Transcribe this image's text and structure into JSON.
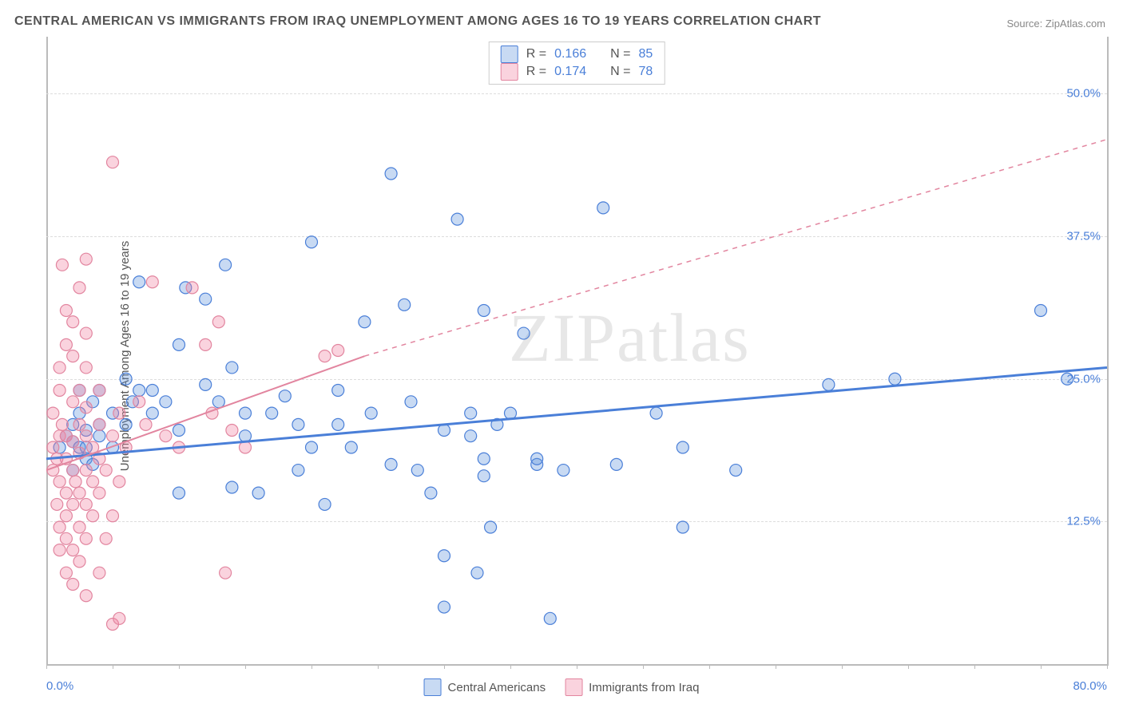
{
  "title": "CENTRAL AMERICAN VS IMMIGRANTS FROM IRAQ UNEMPLOYMENT AMONG AGES 16 TO 19 YEARS CORRELATION CHART",
  "source": "Source: ZipAtlas.com",
  "y_axis_label": "Unemployment Among Ages 16 to 19 years",
  "watermark": "ZIPatlas",
  "chart": {
    "type": "scatter",
    "xlim": [
      0,
      80
    ],
    "ylim": [
      0,
      55
    ],
    "x_min_label": "0.0%",
    "x_max_label": "80.0%",
    "y_ticks": [
      12.5,
      25.0,
      37.5,
      50.0
    ],
    "y_tick_labels": [
      "12.5%",
      "25.0%",
      "37.5%",
      "50.0%"
    ],
    "x_minor_tick_step": 5,
    "background_color": "#ffffff",
    "grid_color": "#dddddd",
    "axis_color": "#bbbbbb",
    "series": [
      {
        "name": "Central Americans",
        "color_fill": "rgba(96,150,222,0.35)",
        "color_stroke": "#4a7fd8",
        "r_label": "R =",
        "r_value": "0.166",
        "n_label": "N =",
        "n_value": "85",
        "trend": {
          "x1": 0,
          "y1": 18,
          "x2": 80,
          "y2": 26,
          "dash": false,
          "stroke_width": 3
        },
        "points": [
          [
            1,
            19
          ],
          [
            1.5,
            20
          ],
          [
            2,
            19.5
          ],
          [
            2,
            21
          ],
          [
            2,
            17
          ],
          [
            2.5,
            19
          ],
          [
            2.5,
            22
          ],
          [
            2.5,
            24
          ],
          [
            3,
            18
          ],
          [
            3,
            20.5
          ],
          [
            3,
            19
          ],
          [
            3.5,
            23
          ],
          [
            3.5,
            17.5
          ],
          [
            4,
            20
          ],
          [
            4,
            24
          ],
          [
            4,
            21
          ],
          [
            5,
            22
          ],
          [
            5,
            19
          ],
          [
            6,
            25
          ],
          [
            6,
            21
          ],
          [
            6.5,
            23
          ],
          [
            7,
            24
          ],
          [
            7,
            33.5
          ],
          [
            8,
            22
          ],
          [
            8,
            24
          ],
          [
            9,
            23
          ],
          [
            10,
            20.5
          ],
          [
            10,
            28
          ],
          [
            10,
            15
          ],
          [
            10.5,
            33
          ],
          [
            12,
            32
          ],
          [
            12,
            24.5
          ],
          [
            13,
            23
          ],
          [
            14,
            15.5
          ],
          [
            14,
            26
          ],
          [
            15,
            20
          ],
          [
            15,
            22
          ],
          [
            16,
            15
          ],
          [
            17,
            22
          ],
          [
            18,
            23.5
          ],
          [
            19,
            17
          ],
          [
            20,
            19
          ],
          [
            20,
            37
          ],
          [
            21,
            14
          ],
          [
            22,
            21
          ],
          [
            22,
            24
          ],
          [
            23,
            19
          ],
          [
            24,
            30
          ],
          [
            24.5,
            22
          ],
          [
            26,
            43
          ],
          [
            26,
            17.5
          ],
          [
            27,
            31.5
          ],
          [
            27.5,
            23
          ],
          [
            28,
            17
          ],
          [
            29,
            15
          ],
          [
            30,
            20.5
          ],
          [
            30,
            9.5
          ],
          [
            30,
            5
          ],
          [
            31,
            39
          ],
          [
            32,
            20
          ],
          [
            32,
            22
          ],
          [
            32.5,
            8
          ],
          [
            33,
            16.5
          ],
          [
            33,
            31
          ],
          [
            33,
            18
          ],
          [
            33.5,
            12
          ],
          [
            34,
            21
          ],
          [
            35,
            22
          ],
          [
            36,
            29
          ],
          [
            37,
            17.5
          ],
          [
            37,
            18
          ],
          [
            38,
            4
          ],
          [
            39,
            17
          ],
          [
            42,
            40
          ],
          [
            43,
            17.5
          ],
          [
            46,
            22
          ],
          [
            48,
            19
          ],
          [
            48,
            12
          ],
          [
            52,
            17
          ],
          [
            59,
            24.5
          ],
          [
            64,
            25
          ],
          [
            75,
            31
          ],
          [
            77,
            25
          ],
          [
            19,
            21
          ],
          [
            13.5,
            35
          ]
        ]
      },
      {
        "name": "Immigrants from Iraq",
        "color_fill": "rgba(240,130,160,0.35)",
        "color_stroke": "#e2859f",
        "r_label": "R =",
        "r_value": "0.174",
        "n_label": "N =",
        "n_value": "78",
        "trend": {
          "x1": 0,
          "y1": 17,
          "x2": 24,
          "y2": 27,
          "extend_x2": 80,
          "extend_y2": 46,
          "dash": true,
          "stroke_width": 2
        },
        "points": [
          [
            0.5,
            17
          ],
          [
            0.5,
            19
          ],
          [
            0.5,
            22
          ],
          [
            0.8,
            14
          ],
          [
            0.8,
            18
          ],
          [
            1,
            10
          ],
          [
            1,
            12
          ],
          [
            1,
            16
          ],
          [
            1,
            20
          ],
          [
            1,
            24
          ],
          [
            1,
            26
          ],
          [
            1.2,
            35
          ],
          [
            1.2,
            21
          ],
          [
            1.5,
            8
          ],
          [
            1.5,
            11
          ],
          [
            1.5,
            13
          ],
          [
            1.5,
            15
          ],
          [
            1.5,
            18
          ],
          [
            1.5,
            20
          ],
          [
            1.5,
            28
          ],
          [
            1.5,
            31
          ],
          [
            2,
            7
          ],
          [
            2,
            10
          ],
          [
            2,
            14
          ],
          [
            2,
            17
          ],
          [
            2,
            19.5
          ],
          [
            2,
            23
          ],
          [
            2,
            27
          ],
          [
            2,
            30
          ],
          [
            2.2,
            16
          ],
          [
            2.5,
            9
          ],
          [
            2.5,
            12
          ],
          [
            2.5,
            15
          ],
          [
            2.5,
            18.5
          ],
          [
            2.5,
            21
          ],
          [
            2.5,
            24
          ],
          [
            2.5,
            33
          ],
          [
            3,
            6
          ],
          [
            3,
            11
          ],
          [
            3,
            14
          ],
          [
            3,
            17
          ],
          [
            3,
            20
          ],
          [
            3,
            22.5
          ],
          [
            3,
            26
          ],
          [
            3,
            29
          ],
          [
            3,
            35.5
          ],
          [
            3.5,
            16
          ],
          [
            3.5,
            19
          ],
          [
            3.5,
            13
          ],
          [
            4,
            8
          ],
          [
            4,
            15
          ],
          [
            4,
            18
          ],
          [
            4,
            21
          ],
          [
            4,
            24
          ],
          [
            4.5,
            11
          ],
          [
            4.5,
            17
          ],
          [
            5,
            13
          ],
          [
            5,
            20
          ],
          [
            5,
            3.5
          ],
          [
            5.5,
            4
          ],
          [
            5.5,
            16
          ],
          [
            5.5,
            22
          ],
          [
            6,
            19
          ],
          [
            7,
            23
          ],
          [
            7.5,
            21
          ],
          [
            8,
            33.5
          ],
          [
            9,
            20
          ],
          [
            10,
            19
          ],
          [
            11,
            33
          ],
          [
            12,
            28
          ],
          [
            12.5,
            22
          ],
          [
            13,
            30
          ],
          [
            13.5,
            8
          ],
          [
            14,
            20.5
          ],
          [
            15,
            19
          ],
          [
            5,
            44
          ],
          [
            21,
            27
          ],
          [
            22,
            27.5
          ]
        ]
      }
    ],
    "marker_radius": 7.5,
    "marker_stroke_width": 1.2,
    "title_fontsize": 16,
    "label_fontsize": 15,
    "tick_fontsize": 15,
    "tick_color": "#4a7fd8"
  },
  "bottom_legend": {
    "items": [
      "Central Americans",
      "Immigrants from Iraq"
    ]
  }
}
